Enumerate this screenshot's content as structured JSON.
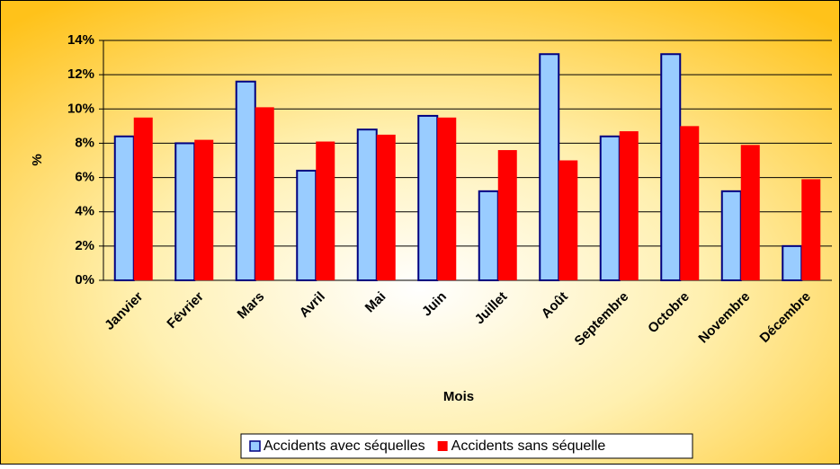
{
  "chart_data": {
    "type": "bar",
    "x_label": "Mois",
    "y_label": "%",
    "categories": [
      "Janvier",
      "Février",
      "Mars",
      "Avril",
      "Mai",
      "Juin",
      "Juillet",
      "Août",
      "Septembre",
      "Octobre",
      "Novembre",
      "Décembre"
    ],
    "series": [
      {
        "name": "Accidents avec séquelles",
        "color": "#99ccff",
        "values": [
          8.4,
          8.0,
          11.6,
          6.4,
          8.8,
          9.6,
          5.2,
          13.2,
          8.4,
          13.2,
          5.2,
          2.0
        ]
      },
      {
        "name": "Accidents sans séquelle",
        "color": "#ff0000",
        "values": [
          9.5,
          8.2,
          10.1,
          8.1,
          8.5,
          9.5,
          7.6,
          7.0,
          8.7,
          9.0,
          7.9,
          5.9
        ]
      }
    ],
    "ylim": [
      0,
      14
    ],
    "yticks": [
      {
        "value": 0,
        "label": "0%"
      },
      {
        "value": 2,
        "label": "2%"
      },
      {
        "value": 4,
        "label": "4%"
      },
      {
        "value": 6,
        "label": "6%"
      },
      {
        "value": 8,
        "label": "8%"
      },
      {
        "value": 10,
        "label": "10%"
      },
      {
        "value": 12,
        "label": "12%"
      },
      {
        "value": 14,
        "label": "14%"
      }
    ],
    "grid": true,
    "legend": "bottom"
  }
}
